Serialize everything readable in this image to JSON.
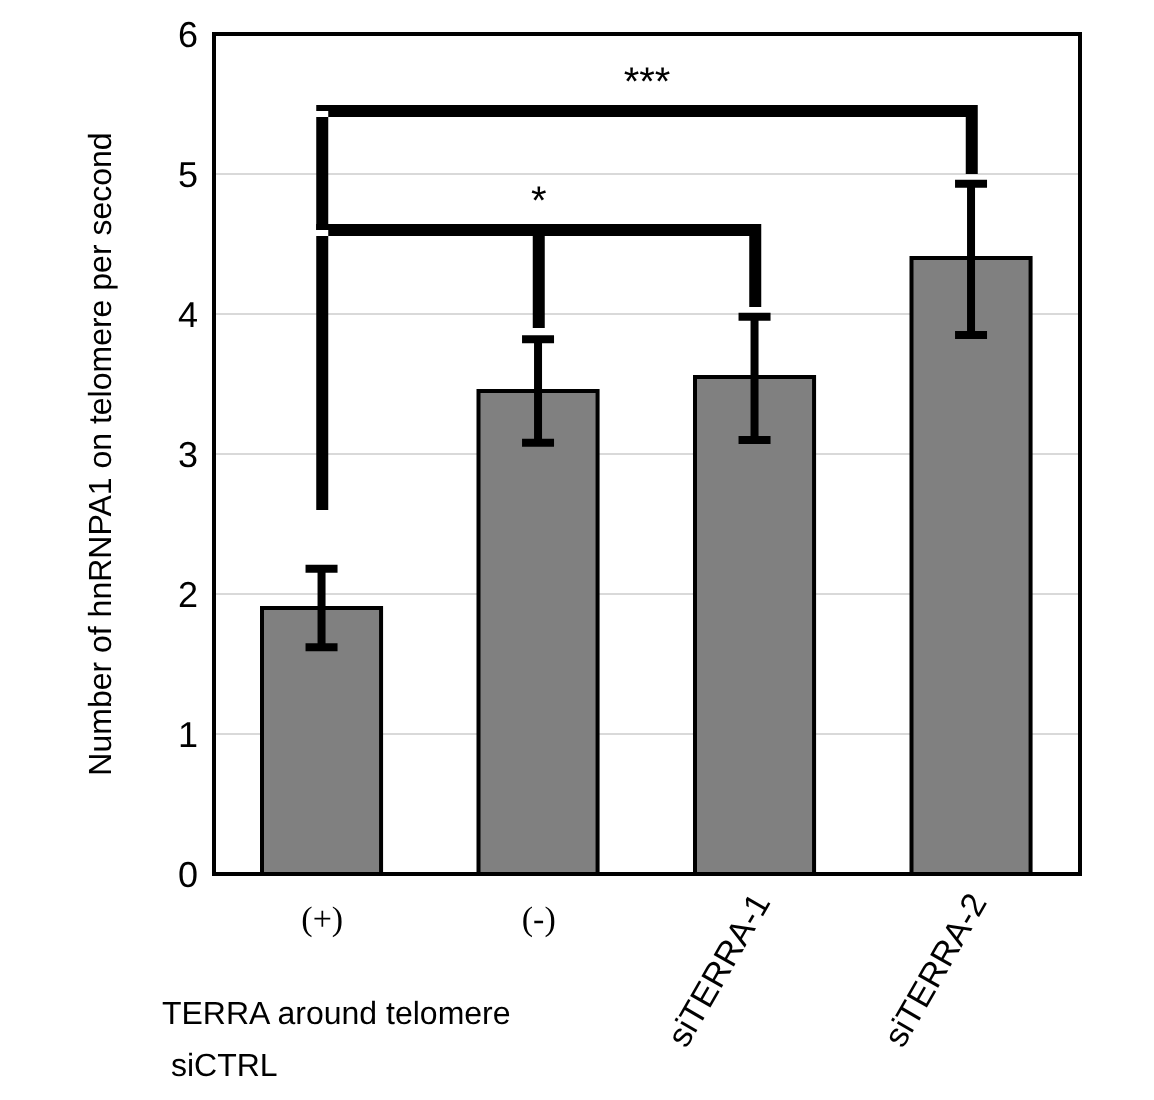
{
  "chart_data": {
    "type": "bar",
    "ylabel": "Number of hnRNPA1 on telomere per second",
    "categories": [
      "(+)",
      "(-)",
      "siTERRA-1",
      "siTERRA-2"
    ],
    "values": [
      1.9,
      3.45,
      3.55,
      4.4
    ],
    "errors": [
      [
        1.62,
        2.18
      ],
      [
        3.08,
        3.82
      ],
      [
        3.1,
        3.98
      ],
      [
        3.85,
        4.93
      ]
    ],
    "color": "#808080",
    "ylim": [
      0,
      6
    ],
    "yticks": [
      0,
      1,
      2,
      3,
      4,
      5,
      6
    ],
    "grid": "y",
    "annotations": [
      "*",
      "***",
      "TERRA around telomere",
      "siCTRL"
    ]
  }
}
